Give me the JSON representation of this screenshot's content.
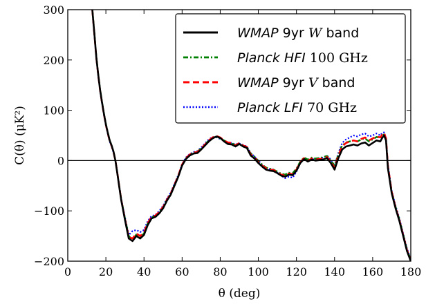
{
  "chart_data": {
    "type": "line",
    "xlabel": "θ (deg)",
    "ylabel": "C(θ) (μK²)",
    "xlim": [
      0,
      180
    ],
    "ylim": [
      -200,
      300
    ],
    "xticks": [
      0,
      20,
      40,
      60,
      80,
      100,
      120,
      140,
      160,
      180
    ],
    "yticks": [
      -200,
      -100,
      0,
      100,
      200,
      300
    ],
    "ytick_labels": [
      "−200",
      "−100",
      "0",
      "100",
      "200",
      "300"
    ],
    "grid": false,
    "zero_line": true,
    "legend_position": "top-right",
    "x": [
      12,
      13,
      14,
      15,
      16,
      17,
      18,
      19,
      20,
      21,
      22,
      23,
      24,
      25,
      26,
      27,
      28,
      30,
      32,
      34,
      36,
      38,
      40,
      42,
      44,
      46,
      48,
      50,
      52,
      54,
      56,
      58,
      60,
      62,
      64,
      66,
      68,
      70,
      72,
      74,
      76,
      78,
      80,
      82,
      84,
      86,
      88,
      90,
      92,
      94,
      96,
      98,
      100,
      102,
      104,
      106,
      108,
      110,
      112,
      114,
      116,
      118,
      120,
      122,
      124,
      126,
      128,
      130,
      132,
      134,
      136,
      138,
      140,
      142,
      144,
      146,
      148,
      150,
      152,
      154,
      156,
      158,
      160,
      162,
      164,
      165,
      166,
      167,
      168,
      170,
      172,
      174,
      176,
      178,
      180
    ],
    "series": [
      {
        "name": "WMAP 9yr W band",
        "color": "#000000",
        "dash": "solid",
        "values": [
          360,
          295,
          250,
          205,
          170,
          140,
          115,
          92,
          72,
          55,
          40,
          30,
          18,
          0,
          -25,
          -52,
          -78,
          -118,
          -155,
          -160,
          -150,
          -155,
          -148,
          -128,
          -115,
          -112,
          -105,
          -95,
          -80,
          -68,
          -50,
          -32,
          -10,
          3,
          10,
          14,
          15,
          22,
          30,
          38,
          44,
          48,
          45,
          38,
          33,
          32,
          28,
          33,
          28,
          25,
          10,
          4,
          -5,
          -12,
          -18,
          -20,
          -21,
          -25,
          -30,
          -32,
          -28,
          -29,
          -20,
          -5,
          3,
          -2,
          2,
          0,
          1,
          2,
          5,
          -5,
          -18,
          5,
          22,
          28,
          30,
          32,
          30,
          34,
          36,
          30,
          35,
          40,
          38,
          45,
          50,
          40,
          -15,
          -65,
          -95,
          -120,
          -150,
          -180,
          -200
        ]
      },
      {
        "name": "Planck HFI 100 GHz",
        "color": "#008000",
        "dash": "dashdot",
        "values": [
          362,
          297,
          252,
          207,
          171,
          141,
          116,
          93,
          73,
          56,
          41,
          30,
          18,
          0,
          -24,
          -50,
          -76,
          -115,
          -150,
          -157,
          -147,
          -152,
          -145,
          -125,
          -113,
          -110,
          -103,
          -93,
          -78,
          -66,
          -48,
          -31,
          -9,
          4,
          12,
          16,
          18,
          24,
          32,
          40,
          46,
          47,
          44,
          40,
          36,
          34,
          31,
          33,
          30,
          27,
          14,
          8,
          -1,
          -8,
          -14,
          -16,
          -18,
          -22,
          -26,
          -28,
          -24,
          -25,
          -16,
          -2,
          6,
          2,
          6,
          4,
          5,
          7,
          9,
          0,
          -10,
          12,
          30,
          36,
          38,
          40,
          38,
          42,
          44,
          38,
          42,
          47,
          45,
          50,
          52,
          42,
          -12,
          -62,
          -92,
          -117,
          -147,
          -177,
          -197
        ]
      },
      {
        "name": "WMAP 9yr V band",
        "color": "#ff0000",
        "dash": "dashed",
        "values": [
          358,
          294,
          249,
          204,
          169,
          139,
          114,
          91,
          71,
          54,
          39,
          29,
          17,
          0,
          -24,
          -51,
          -77,
          -116,
          -152,
          -155,
          -145,
          -150,
          -143,
          -124,
          -112,
          -109,
          -102,
          -92,
          -78,
          -66,
          -48,
          -30,
          -8,
          5,
          12,
          16,
          17,
          24,
          32,
          40,
          46,
          49,
          46,
          40,
          36,
          35,
          30,
          35,
          30,
          27,
          12,
          6,
          -3,
          -10,
          -15,
          -18,
          -19,
          -23,
          -28,
          -30,
          -26,
          -27,
          -18,
          -3,
          5,
          0,
          4,
          2,
          3,
          4,
          7,
          -2,
          -14,
          10,
          28,
          35,
          38,
          40,
          38,
          43,
          46,
          40,
          44,
          48,
          46,
          52,
          55,
          44,
          -10,
          -62,
          -93,
          -118,
          -148,
          -178,
          -198
        ]
      },
      {
        "name": "Planck LFI 70 GHz",
        "color": "#0000ff",
        "dash": "dotted",
        "values": [
          356,
          292,
          248,
          203,
          168,
          138,
          113,
          90,
          70,
          53,
          38,
          28,
          16,
          0,
          -23,
          -49,
          -75,
          -113,
          -148,
          -140,
          -138,
          -142,
          -138,
          -120,
          -110,
          -108,
          -100,
          -90,
          -76,
          -64,
          -46,
          -29,
          -7,
          6,
          13,
          17,
          19,
          26,
          34,
          42,
          47,
          46,
          43,
          40,
          36,
          35,
          32,
          34,
          31,
          28,
          15,
          8,
          0,
          -8,
          -14,
          -17,
          -18,
          -24,
          -30,
          -35,
          -32,
          -34,
          -22,
          -5,
          4,
          -1,
          3,
          2,
          4,
          6,
          10,
          2,
          -10,
          15,
          35,
          42,
          46,
          50,
          48,
          52,
          54,
          48,
          50,
          54,
          50,
          55,
          56,
          45,
          -8,
          -60,
          -90,
          -115,
          -145,
          -175,
          -196
        ]
      }
    ],
    "legend": [
      {
        "series": 0,
        "parts": [
          {
            "t": "WMAP",
            "c": "sans it"
          },
          {
            "t": " 9yr ",
            "c": "sans"
          },
          {
            "t": "W",
            "c": "serif it"
          },
          {
            "t": " band",
            "c": "sans"
          }
        ]
      },
      {
        "series": 1,
        "parts": [
          {
            "t": "Planck HFI",
            "c": "sans it"
          },
          {
            "t": " 100 GHz",
            "c": "serif"
          }
        ]
      },
      {
        "series": 2,
        "parts": [
          {
            "t": "WMAP",
            "c": "sans it"
          },
          {
            "t": " 9yr ",
            "c": "sans"
          },
          {
            "t": "V",
            "c": "serif it"
          },
          {
            "t": " band",
            "c": "sans"
          }
        ]
      },
      {
        "series": 3,
        "parts": [
          {
            "t": "Planck LFI",
            "c": "sans it"
          },
          {
            "t": " 70 GHz",
            "c": "serif"
          }
        ]
      }
    ]
  }
}
